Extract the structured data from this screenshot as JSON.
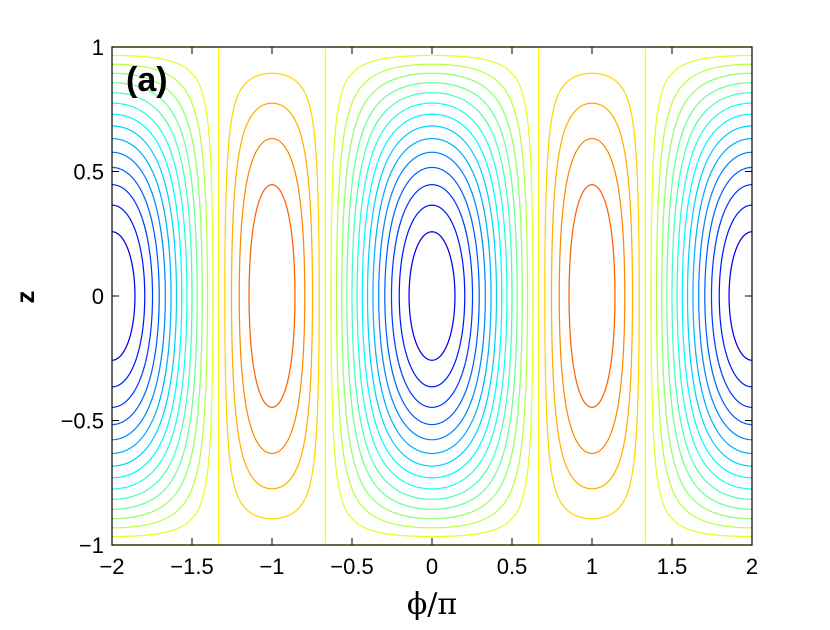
{
  "chart_data": {
    "type": "contour",
    "panel_label": "(a)",
    "xlabel": "ϕ/π",
    "ylabel": "z",
    "xlim": [
      -2,
      2
    ],
    "ylim": [
      -1,
      1
    ],
    "x_ticks": [
      -2,
      -1.5,
      -1,
      -0.5,
      0,
      0.5,
      1,
      1.5,
      2
    ],
    "x_tick_labels": [
      "−2",
      "−1.5",
      "−1",
      "−0.5",
      "0",
      "0.5",
      "1",
      "1.5",
      "2"
    ],
    "y_ticks": [
      1,
      0.5,
      0,
      -0.5,
      -1
    ],
    "y_tick_labels": [
      "1",
      "0.5",
      "0",
      "−0.5",
      "−1"
    ],
    "grid": false,
    "colormap": "jet",
    "levels": [
      -0.6,
      -0.55,
      -0.5,
      -0.45,
      -0.4,
      -0.35,
      -0.3,
      -0.25,
      -0.2,
      -0.15,
      -0.1,
      -0.05,
      0.0,
      0.05,
      0.1,
      0.15,
      0.2,
      0.25,
      0.3,
      0.35,
      0.4,
      0.45,
      0.5,
      0.55,
      0.6,
      0.65,
      0.7,
      0.75
    ],
    "level_color_range": [
      -0.6,
      0.75
    ],
    "minima": [
      {
        "x": -2,
        "z": 0
      },
      {
        "x": 0,
        "z": 0
      },
      {
        "x": 2,
        "z": 0
      }
    ],
    "saddles": [
      {
        "x": -1,
        "z": 0
      },
      {
        "x": 1,
        "z": 0
      }
    ],
    "maxima": [
      {
        "x": -1,
        "z": 1
      },
      {
        "x": -1,
        "z": -1
      },
      {
        "x": 1,
        "z": 1
      },
      {
        "x": 1,
        "z": -1
      }
    ]
  }
}
